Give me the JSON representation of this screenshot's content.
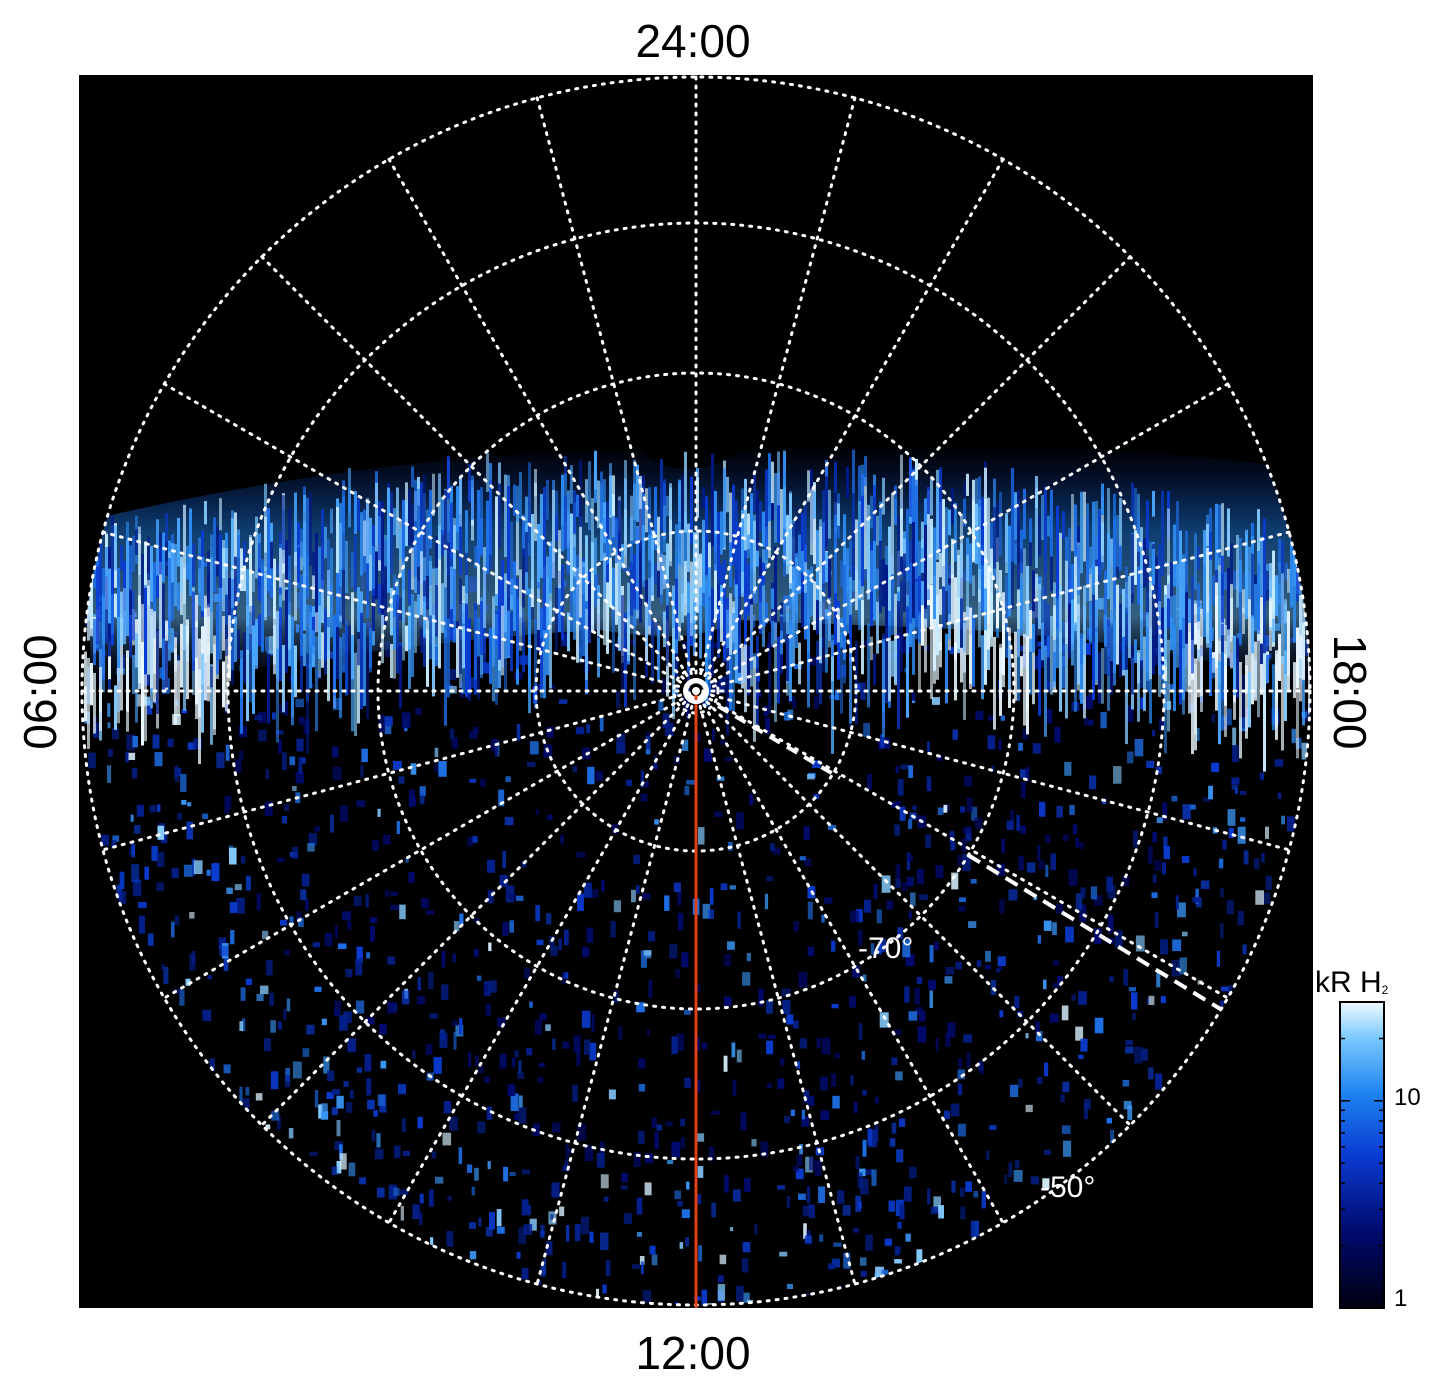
{
  "labels": {
    "top": "24:00",
    "bottom": "12:00",
    "left": "06:00",
    "right": "18:00",
    "lat_inner": "-70°",
    "lat_outer": "-50°"
  },
  "colorbar": {
    "unit_main": "kR H",
    "unit_sub": "2",
    "ticks": [
      "10",
      "1"
    ],
    "colors": [
      "#000010",
      "#000a6e",
      "#0a3cd2",
      "#1e82f0",
      "#78c8ff",
      "#f0faff"
    ]
  },
  "colors": {
    "background": "#000000",
    "grid": "#ffffff",
    "meridian_line": "#e0401a",
    "aurora_bright": "#e8f6ff",
    "aurora_mid": "#2e8cf0",
    "aurora_dark": "#001060"
  }
}
